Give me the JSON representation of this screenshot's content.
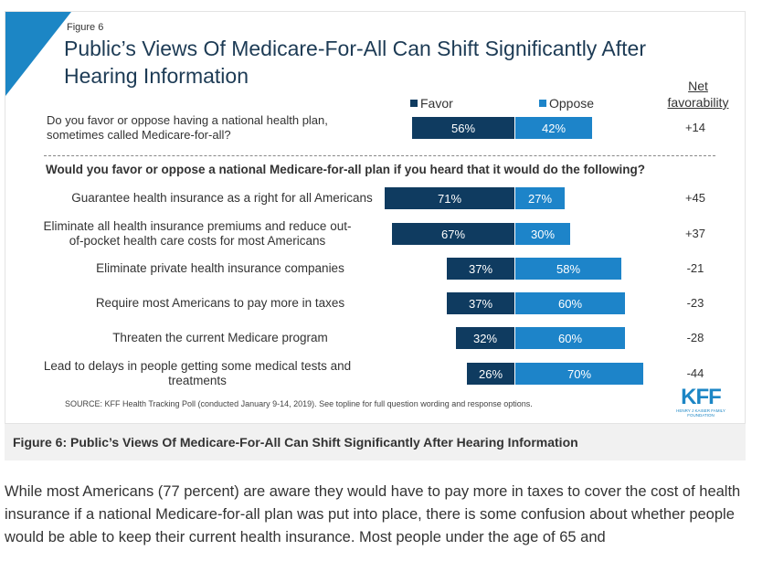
{
  "figure": {
    "label": "Figure 6",
    "title": "Public’s Views Of Medicare-For-All Can Shift Significantly After Hearing Information",
    "source": "SOURCE: KFF Health Tracking Poll (conducted January 9-14, 2019). See topline for full question wording and response options.",
    "logo_text": "KFF",
    "logo_sub": "HENRY J KAISER FAMILY FOUNDATION"
  },
  "colors": {
    "favor": "#0f3b60",
    "oppose": "#1d84c9",
    "accent": "#1c86c5"
  },
  "chart_data": {
    "type": "bar",
    "orientation": "horizontal-diverging",
    "legend": [
      "Favor",
      "Oppose"
    ],
    "net_header": "Net favorability",
    "main_question": "Do you favor or oppose having a national health plan, sometimes called Medicare-for-all?",
    "followup_question": "Would you favor or oppose a national Medicare-for-all plan if you heard that it would do the following?",
    "rows": [
      {
        "category": "Do you favor or oppose having a national health plan, sometimes called Medicare-for-all?",
        "favor": 56,
        "oppose": 42,
        "favor_label": "56%",
        "oppose_label": "42%",
        "net": "+14"
      },
      {
        "category": "Guarantee health insurance as a right for all Americans",
        "favor": 71,
        "oppose": 27,
        "favor_label": "71%",
        "oppose_label": "27%",
        "net": "+45"
      },
      {
        "category": "Eliminate all health insurance premiums and reduce out-of-pocket health care costs for most Americans",
        "favor": 67,
        "oppose": 30,
        "favor_label": "67%",
        "oppose_label": "30%",
        "net": "+37"
      },
      {
        "category": "Eliminate private health insurance companies",
        "favor": 37,
        "oppose": 58,
        "favor_label": "37%",
        "oppose_label": "58%",
        "net": "-21"
      },
      {
        "category": "Require most Americans to pay more in taxes",
        "favor": 37,
        "oppose": 60,
        "favor_label": "37%",
        "oppose_label": "60%",
        "net": "-23"
      },
      {
        "category": "Threaten the current Medicare program",
        "favor": 32,
        "oppose": 60,
        "favor_label": "32%",
        "oppose_label": "60%",
        "net": "-28"
      },
      {
        "category": "Lead to delays in people getting some medical tests and treatments",
        "favor": 26,
        "oppose": 70,
        "favor_label": "26%",
        "oppose_label": "70%",
        "net": "-44"
      }
    ]
  },
  "caption": "Figure 6: Public’s Views Of Medicare-For-All Can Shift Significantly After Hearing Information",
  "body_text": "While most Americans (77 percent) are aware they would have to pay more in taxes to cover the cost of health insurance if a national Medicare-for-all plan was put into place, there is some confusion about whether people would be able to keep their current health insurance. Most people under the age of 65 and"
}
